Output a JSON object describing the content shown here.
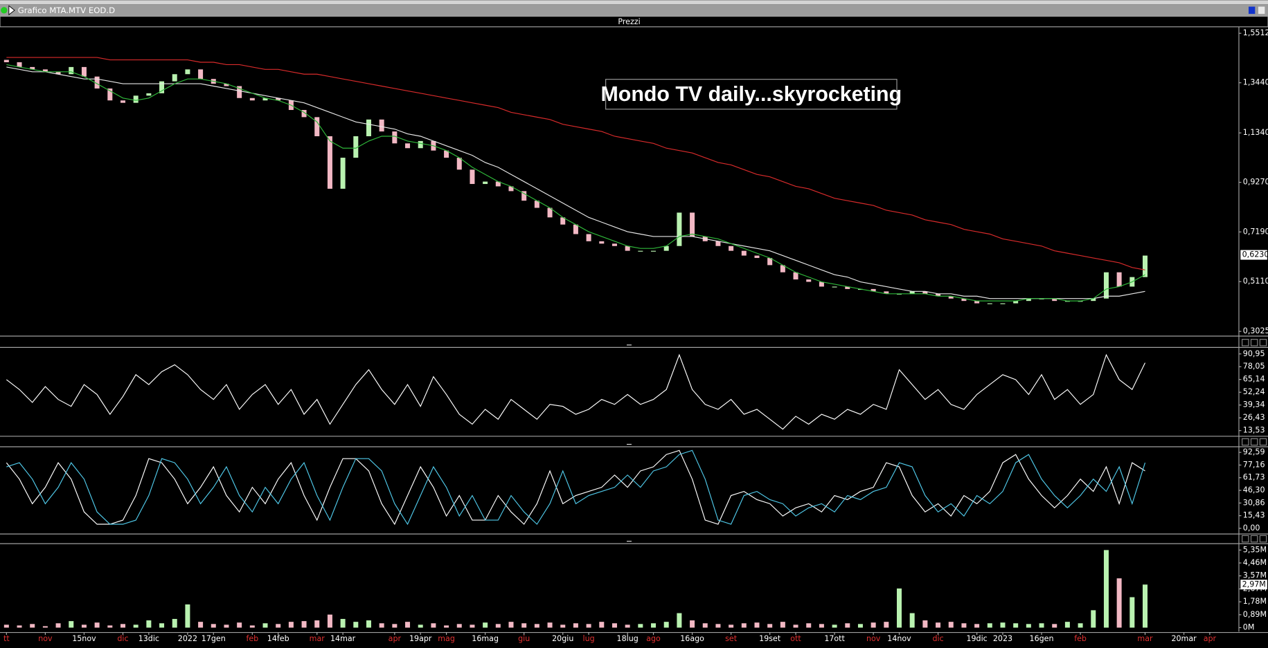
{
  "window_title": "Grafico MTA.MTV EOD.D",
  "chart_data": [
    {
      "type": "candlestick",
      "title": "Prezzi",
      "annotation": "Mondo TV daily...skyrocketing",
      "categories": [
        "tt",
        null,
        null,
        "nov",
        null,
        null,
        "15nov",
        null,
        null,
        "dic",
        null,
        "13dic",
        null,
        null,
        "2022",
        null,
        "17gen",
        null,
        null,
        "feb",
        null,
        "14feb",
        null,
        null,
        "mar",
        null,
        "14mar",
        null,
        null,
        null,
        "apr",
        null,
        "19apr",
        null,
        "mag",
        null,
        null,
        "16mag",
        null,
        null,
        "giu",
        null,
        null,
        "20giu",
        null,
        "lug",
        null,
        null,
        "18lug",
        null,
        "ago",
        null,
        null,
        "16ago",
        null,
        null,
        "set",
        null,
        null,
        "19set",
        null,
        "ott",
        null,
        null,
        "17ott",
        null,
        null,
        "nov",
        null,
        "14nov",
        null,
        null,
        "dic",
        null,
        null,
        "19dic",
        null,
        "2023",
        null,
        null,
        "16gen",
        null,
        null,
        "feb",
        null,
        null,
        null,
        null,
        "mar",
        null,
        null,
        "20mar",
        null,
        "apr",
        null,
        null
      ],
      "open": [
        1.44,
        1.43,
        1.41,
        1.4,
        1.39,
        1.38,
        1.41,
        1.37,
        1.32,
        1.27,
        1.26,
        1.29,
        1.3,
        1.35,
        1.38,
        1.4,
        1.36,
        1.34,
        1.33,
        1.28,
        1.27,
        1.28,
        1.27,
        1.23,
        1.2,
        1.12,
        0.9,
        1.03,
        1.12,
        1.19,
        1.14,
        1.09,
        1.07,
        1.1,
        1.06,
        1.03,
        0.98,
        0.92,
        0.93,
        0.91,
        0.89,
        0.85,
        0.82,
        0.78,
        0.75,
        0.71,
        0.68,
        0.67,
        0.66,
        0.64,
        0.64,
        0.64,
        0.66,
        0.8,
        0.7,
        0.68,
        0.66,
        0.64,
        0.62,
        0.61,
        0.58,
        0.55,
        0.52,
        0.51,
        0.49,
        0.49,
        0.48,
        0.48,
        0.47,
        0.46,
        0.46,
        0.47,
        0.46,
        0.45,
        0.44,
        0.43,
        0.42,
        0.42,
        0.42,
        0.43,
        0.44,
        0.44,
        0.43,
        0.43,
        0.43,
        0.44,
        0.55,
        0.49,
        0.53,
        null,
        null,
        null,
        null,
        null,
        null,
        null
      ],
      "close": [
        1.43,
        1.41,
        1.4,
        1.39,
        1.38,
        1.41,
        1.37,
        1.32,
        1.27,
        1.26,
        1.29,
        1.3,
        1.35,
        1.38,
        1.4,
        1.36,
        1.34,
        1.33,
        1.28,
        1.27,
        1.28,
        1.27,
        1.23,
        1.2,
        1.12,
        0.9,
        1.03,
        1.12,
        1.19,
        1.14,
        1.09,
        1.07,
        1.1,
        1.06,
        1.03,
        0.98,
        0.92,
        0.93,
        0.91,
        0.89,
        0.85,
        0.82,
        0.78,
        0.75,
        0.71,
        0.68,
        0.67,
        0.66,
        0.64,
        0.64,
        0.64,
        0.66,
        0.8,
        0.7,
        0.68,
        0.66,
        0.64,
        0.62,
        0.61,
        0.58,
        0.55,
        0.52,
        0.51,
        0.49,
        0.49,
        0.48,
        0.48,
        0.47,
        0.46,
        0.46,
        0.47,
        0.46,
        0.45,
        0.44,
        0.43,
        0.42,
        0.42,
        0.42,
        0.43,
        0.44,
        0.44,
        0.43,
        0.43,
        0.43,
        0.44,
        0.55,
        0.49,
        0.53,
        0.62,
        null,
        null,
        null,
        null,
        null,
        null,
        null
      ],
      "colors": {
        "up": "#b9f2b0",
        "down": "#f2b8c4"
      },
      "series": [
        {
          "color": "#d92b2b",
          "values": [
            1.45,
            1.45,
            1.45,
            1.45,
            1.45,
            1.45,
            1.45,
            1.45,
            1.44,
            1.44,
            1.44,
            1.44,
            1.44,
            1.44,
            1.44,
            1.43,
            1.43,
            1.42,
            1.42,
            1.41,
            1.4,
            1.4,
            1.39,
            1.38,
            1.38,
            1.37,
            1.36,
            1.35,
            1.34,
            1.33,
            1.32,
            1.31,
            1.3,
            1.29,
            1.28,
            1.27,
            1.26,
            1.25,
            1.24,
            1.22,
            1.21,
            1.2,
            1.19,
            1.17,
            1.16,
            1.15,
            1.14,
            1.12,
            1.11,
            1.1,
            1.09,
            1.07,
            1.06,
            1.05,
            1.03,
            1.01,
            1.0,
            0.98,
            0.96,
            0.95,
            0.93,
            0.91,
            0.9,
            0.88,
            0.86,
            0.85,
            0.84,
            0.83,
            0.81,
            0.8,
            0.79,
            0.77,
            0.76,
            0.75,
            0.73,
            0.72,
            0.71,
            0.69,
            0.68,
            0.67,
            0.66,
            0.64,
            0.63,
            0.62,
            0.61,
            0.6,
            0.59,
            0.57,
            0.56,
            null,
            null,
            null,
            null,
            null,
            null,
            null
          ]
        },
        {
          "color": "#e8e8e8",
          "values": [
            1.41,
            1.4,
            1.39,
            1.39,
            1.38,
            1.37,
            1.36,
            1.36,
            1.35,
            1.34,
            1.34,
            1.34,
            1.34,
            1.34,
            1.34,
            1.34,
            1.33,
            1.32,
            1.31,
            1.3,
            1.29,
            1.28,
            1.27,
            1.26,
            1.24,
            1.22,
            1.2,
            1.18,
            1.17,
            1.16,
            1.15,
            1.13,
            1.12,
            1.1,
            1.08,
            1.06,
            1.04,
            1.01,
            0.99,
            0.96,
            0.93,
            0.9,
            0.87,
            0.84,
            0.81,
            0.78,
            0.76,
            0.74,
            0.72,
            0.71,
            0.7,
            0.7,
            0.7,
            0.7,
            0.69,
            0.68,
            0.67,
            0.66,
            0.65,
            0.64,
            0.62,
            0.6,
            0.58,
            0.56,
            0.54,
            0.53,
            0.51,
            0.5,
            0.49,
            0.48,
            0.47,
            0.47,
            0.46,
            0.46,
            0.45,
            0.45,
            0.44,
            0.44,
            0.44,
            0.44,
            0.44,
            0.44,
            0.44,
            0.44,
            0.44,
            0.45,
            0.45,
            0.46,
            0.47,
            null,
            null,
            null,
            null,
            null,
            null,
            null
          ]
        },
        {
          "color": "#2fb83a",
          "values": [
            1.42,
            1.41,
            1.4,
            1.39,
            1.39,
            1.39,
            1.37,
            1.34,
            1.31,
            1.28,
            1.27,
            1.28,
            1.31,
            1.34,
            1.36,
            1.36,
            1.35,
            1.34,
            1.32,
            1.3,
            1.28,
            1.27,
            1.25,
            1.22,
            1.18,
            1.1,
            1.07,
            1.07,
            1.1,
            1.12,
            1.12,
            1.1,
            1.09,
            1.08,
            1.06,
            1.03,
            0.99,
            0.96,
            0.93,
            0.91,
            0.88,
            0.85,
            0.82,
            0.78,
            0.75,
            0.72,
            0.7,
            0.68,
            0.66,
            0.65,
            0.65,
            0.66,
            0.7,
            0.71,
            0.7,
            0.69,
            0.67,
            0.65,
            0.63,
            0.61,
            0.58,
            0.55,
            0.53,
            0.51,
            0.5,
            0.49,
            0.48,
            0.47,
            0.46,
            0.46,
            0.46,
            0.46,
            0.45,
            0.45,
            0.44,
            0.43,
            0.43,
            0.43,
            0.43,
            0.44,
            0.44,
            0.44,
            0.43,
            0.43,
            0.44,
            0.48,
            0.49,
            0.51,
            0.54,
            null,
            null,
            null,
            null,
            null,
            null,
            null
          ]
        }
      ],
      "ylim": [
        0.286,
        1.575
      ],
      "yticks": [
        {
          "value": 1.5512,
          "label": "1,5512"
        },
        {
          "value": 1.344,
          "label": "1,3440"
        },
        {
          "value": 1.134,
          "label": "1,1340"
        },
        {
          "value": 0.927,
          "label": "0,9270"
        },
        {
          "value": 0.719,
          "label": "0,7190"
        },
        {
          "value": 0.511,
          "label": "0,5110"
        },
        {
          "value": 0.3025,
          "label": "0,3025"
        }
      ],
      "marker": {
        "value": 0.623,
        "label": "0,6230"
      }
    },
    {
      "type": "line",
      "series": [
        {
          "color": "#ffffff",
          "values": [
            65,
            55,
            42,
            58,
            45,
            38,
            60,
            50,
            30,
            48,
            70,
            60,
            73,
            80,
            70,
            55,
            45,
            60,
            35,
            50,
            60,
            40,
            55,
            30,
            45,
            20,
            40,
            60,
            75,
            55,
            40,
            60,
            38,
            68,
            50,
            30,
            20,
            35,
            25,
            45,
            35,
            25,
            40,
            38,
            30,
            35,
            45,
            40,
            50,
            40,
            45,
            55,
            90,
            55,
            40,
            35,
            45,
            30,
            35,
            25,
            15,
            28,
            20,
            30,
            25,
            35,
            30,
            40,
            35,
            75,
            60,
            45,
            55,
            40,
            35,
            50,
            60,
            70,
            65,
            50,
            70,
            45,
            55,
            40,
            50,
            90,
            65,
            55,
            82,
            null,
            null,
            null,
            null,
            null,
            null,
            null
          ]
        }
      ],
      "ylim": [
        9.46,
        96.7
      ],
      "yticks": [
        {
          "value": 90.95,
          "label": "90,95"
        },
        {
          "value": 78.05,
          "label": "78,05"
        },
        {
          "value": 65.14,
          "label": "65,14"
        },
        {
          "value": 52.24,
          "label": "52,24"
        },
        {
          "value": 39.34,
          "label": "39,34"
        },
        {
          "value": 26.43,
          "label": "26,43"
        },
        {
          "value": 13.53,
          "label": "13,53"
        }
      ]
    },
    {
      "type": "line",
      "series": [
        {
          "color": "#ffffff",
          "values": [
            80,
            60,
            30,
            50,
            80,
            60,
            20,
            5,
            5,
            10,
            40,
            85,
            80,
            60,
            30,
            50,
            75,
            40,
            20,
            50,
            30,
            60,
            80,
            40,
            10,
            50,
            85,
            85,
            70,
            30,
            5,
            40,
            75,
            50,
            15,
            40,
            10,
            10,
            40,
            20,
            5,
            30,
            70,
            30,
            40,
            45,
            50,
            65,
            50,
            70,
            75,
            90,
            95,
            60,
            10,
            5,
            40,
            45,
            35,
            30,
            15,
            25,
            30,
            20,
            40,
            35,
            45,
            50,
            80,
            75,
            40,
            20,
            30,
            15,
            40,
            30,
            45,
            80,
            90,
            60,
            40,
            25,
            40,
            60,
            45,
            75,
            30,
            80,
            70,
            null,
            null,
            null,
            null,
            null,
            null,
            null
          ]
        },
        {
          "color": "#4fc8e8",
          "values": [
            75,
            80,
            60,
            30,
            50,
            80,
            60,
            20,
            5,
            5,
            10,
            40,
            85,
            80,
            60,
            30,
            50,
            75,
            40,
            20,
            50,
            30,
            60,
            80,
            40,
            10,
            50,
            85,
            85,
            70,
            30,
            5,
            40,
            75,
            50,
            15,
            40,
            10,
            10,
            40,
            20,
            5,
            30,
            70,
            30,
            40,
            45,
            50,
            65,
            50,
            70,
            75,
            90,
            95,
            60,
            10,
            5,
            40,
            45,
            35,
            30,
            15,
            25,
            30,
            20,
            40,
            35,
            45,
            50,
            80,
            75,
            40,
            20,
            30,
            15,
            40,
            30,
            45,
            80,
            90,
            60,
            40,
            25,
            40,
            60,
            45,
            75,
            30,
            80,
            null,
            null,
            null,
            null,
            null,
            null,
            null
          ]
        }
      ],
      "ylim": [
        -5.9,
        97.5
      ],
      "yticks": [
        {
          "value": 92.59,
          "label": "92,59"
        },
        {
          "value": 77.16,
          "label": "77,16"
        },
        {
          "value": 61.73,
          "label": "61,73"
        },
        {
          "value": 46.3,
          "label": "46,30"
        },
        {
          "value": 30.86,
          "label": "30,86"
        },
        {
          "value": 15.43,
          "label": "15,43"
        },
        {
          "value": 0,
          "label": "0,00"
        }
      ]
    },
    {
      "type": "bar",
      "values": [
        200000,
        150000,
        250000,
        100000,
        300000,
        450000,
        200000,
        350000,
        150000,
        250000,
        200000,
        500000,
        300000,
        600000,
        1600000,
        400000,
        250000,
        200000,
        350000,
        150000,
        300000,
        250000,
        400000,
        450000,
        500000,
        900000,
        600000,
        400000,
        500000,
        300000,
        250000,
        400000,
        200000,
        300000,
        150000,
        250000,
        200000,
        350000,
        250000,
        400000,
        300000,
        250000,
        350000,
        200000,
        300000,
        250000,
        400000,
        300000,
        200000,
        250000,
        300000,
        400000,
        1000000,
        500000,
        300000,
        250000,
        200000,
        300000,
        350000,
        250000,
        400000,
        200000,
        300000,
        250000,
        200000,
        300000,
        250000,
        350000,
        400000,
        2700000,
        1000000,
        500000,
        350000,
        400000,
        300000,
        250000,
        300000,
        350000,
        300000,
        250000,
        300000,
        250000,
        400000,
        300000,
        1200000,
        5350000,
        3400000,
        2100000,
        2970000,
        null,
        null,
        null,
        null,
        null,
        null,
        null
      ],
      "colors": {
        "up": "#b9f2b0",
        "down": "#f2b8c4"
      },
      "ylim": [
        -280000,
        5680000
      ],
      "yticks": [
        {
          "value": 5350000,
          "label": "5,35M"
        },
        {
          "value": 4460000,
          "label": "4,46M"
        },
        {
          "value": 3570000,
          "label": "3,57M"
        },
        {
          "value": 2670000,
          "label": "2,67M"
        },
        {
          "value": 1780000,
          "label": "1,78M"
        },
        {
          "value": 890000,
          "label": "0,89M"
        },
        {
          "value": 0,
          "label": "0M"
        }
      ],
      "marker": {
        "value": 2970000,
        "label": "2,97M"
      }
    }
  ]
}
